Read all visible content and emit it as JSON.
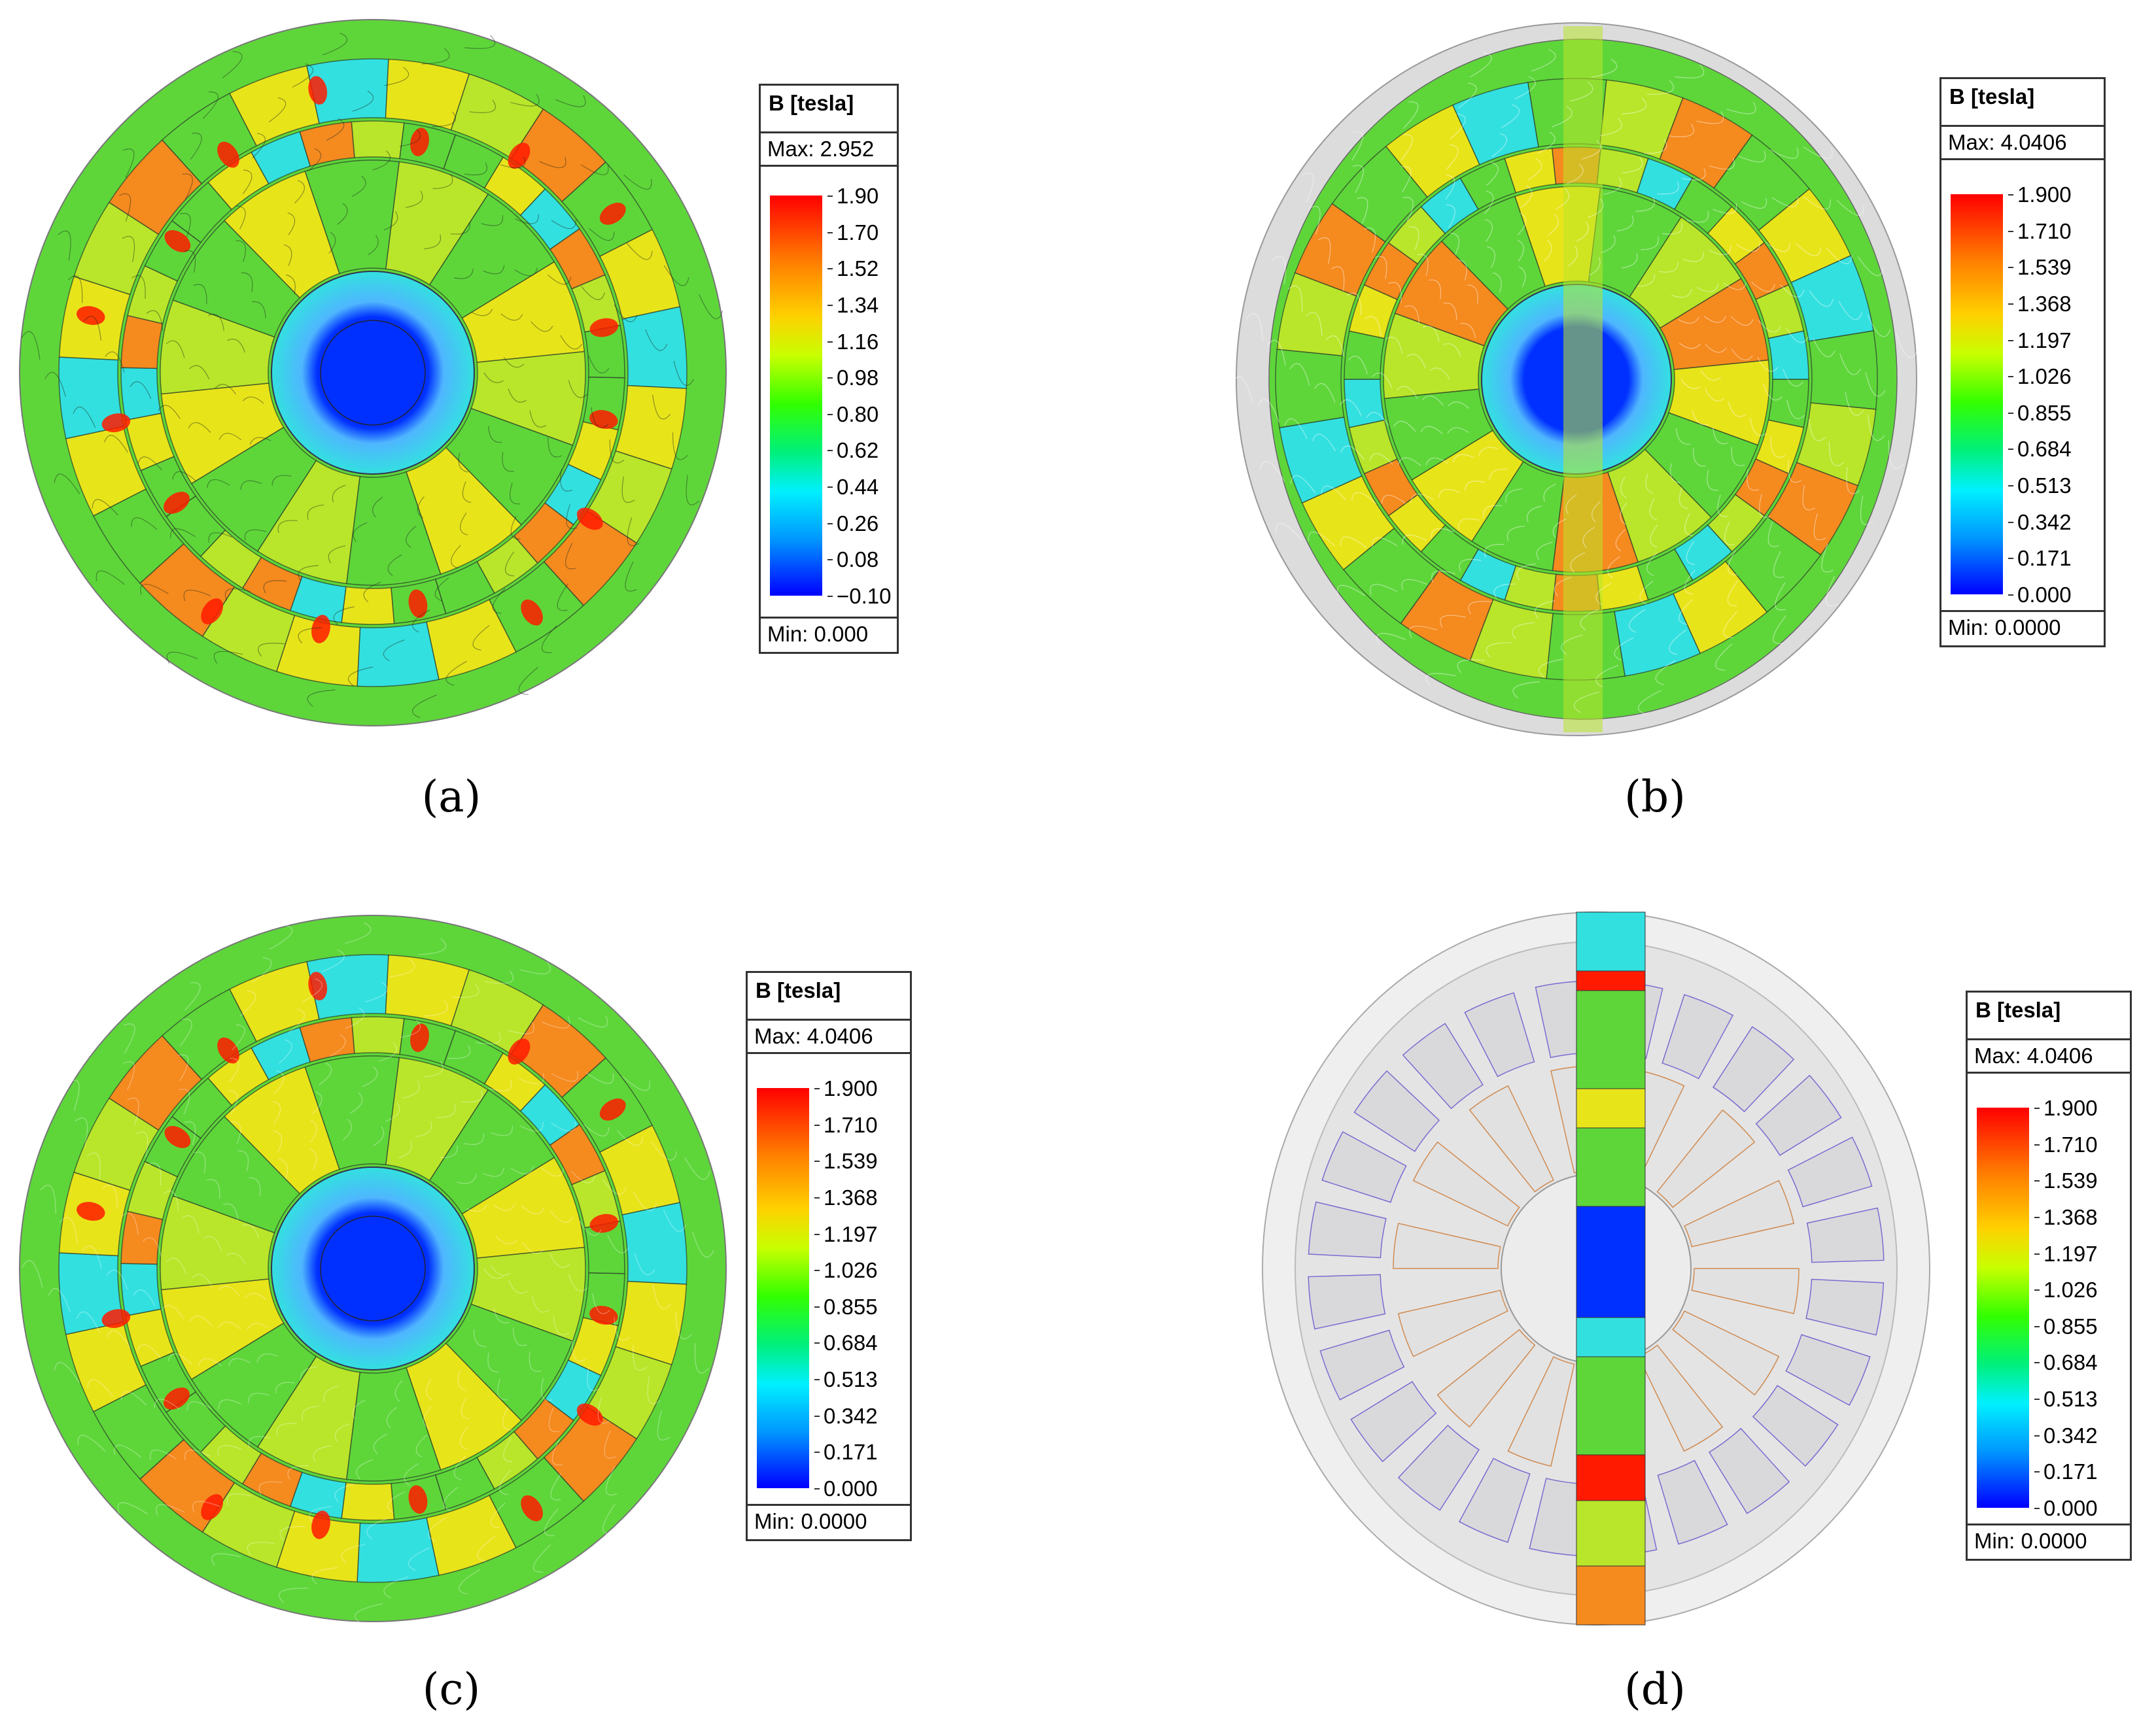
{
  "figure": {
    "panels": [
      {
        "caption": "(a)",
        "legend": {
          "title": "B [tesla]",
          "max": "Max: 2.952",
          "min": "Min: 0.000",
          "ticks": [
            "1.90",
            "1.70",
            "1.52",
            "1.34",
            "1.16",
            "0.98",
            "0.80",
            "0.62",
            "0.44",
            "0.26",
            "0.08",
            "−0.10"
          ]
        }
      },
      {
        "caption": "(b)",
        "legend": {
          "title": "B [tesla]",
          "max": "Max: 4.0406",
          "min": "Min: 0.0000",
          "ticks": [
            "1.900",
            "1.710",
            "1.539",
            "1.368",
            "1.197",
            "1.026",
            "0.855",
            "0.684",
            "0.513",
            "0.342",
            "0.171",
            "0.000"
          ]
        }
      },
      {
        "caption": "(c)",
        "legend": {
          "title": "B [tesla]",
          "max": "Max: 4.0406",
          "min": "Min: 0.0000",
          "ticks": [
            "1.900",
            "1.710",
            "1.539",
            "1.368",
            "1.197",
            "1.026",
            "0.855",
            "0.684",
            "0.513",
            "0.342",
            "0.171",
            "0.000"
          ]
        }
      },
      {
        "caption": "(d)",
        "legend": {
          "title": "B [tesla]",
          "max": "Max: 4.0406",
          "min": "Min: 0.0000",
          "ticks": [
            "1.900",
            "1.710",
            "1.539",
            "1.368",
            "1.197",
            "1.026",
            "0.855",
            "0.684",
            "0.513",
            "0.342",
            "0.171",
            "0.000"
          ]
        }
      }
    ],
    "colors": {
      "red": "#ff1a00",
      "orange": "#f58a1f",
      "yellow": "#e8e41a",
      "yellow_green": "#b9e62a",
      "green": "#5ed63a",
      "cyan": "#33e0e0",
      "light_blue": "#4fb6ff",
      "blue": "#0030ff",
      "gray": "#dcdcdc"
    }
  }
}
